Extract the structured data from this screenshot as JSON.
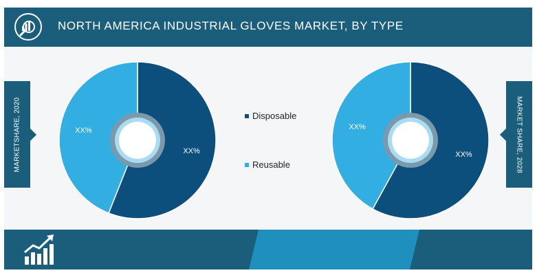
{
  "header": {
    "title": "NORTH AMERICA INDUSTRIAL GLOVES MARKET, BY TYPE",
    "icon": "magnifier-icon"
  },
  "side_labels": {
    "left": "MARKETSHARE, 2020",
    "right": "MARKET SHARE, 2028"
  },
  "colors": {
    "banner": "#1b5e7b",
    "disposable": "#0d4f7c",
    "reusable": "#33aee3",
    "ring": "#7a99ab",
    "ring_light": "#a9dcf2",
    "footer_band": "#1f8fbd"
  },
  "chart_data": [
    {
      "type": "pie",
      "title": "MARKETSHARE, 2020",
      "categories": [
        "Disposable",
        "Reusable"
      ],
      "values": [
        56,
        44
      ],
      "value_labels": [
        "XX%",
        "XX%"
      ],
      "donut": true
    },
    {
      "type": "pie",
      "title": "MARKET SHARE, 2028",
      "categories": [
        "Disposable",
        "Reusable"
      ],
      "values": [
        58,
        42
      ],
      "value_labels": [
        "XX%",
        "XX%"
      ],
      "donut": true
    }
  ],
  "legend": [
    {
      "label": "Disposable",
      "color": "#0d4f7c"
    },
    {
      "label": "Reusable",
      "color": "#33aee3"
    }
  ],
  "footer": {
    "icon": "growth-chart-icon"
  }
}
